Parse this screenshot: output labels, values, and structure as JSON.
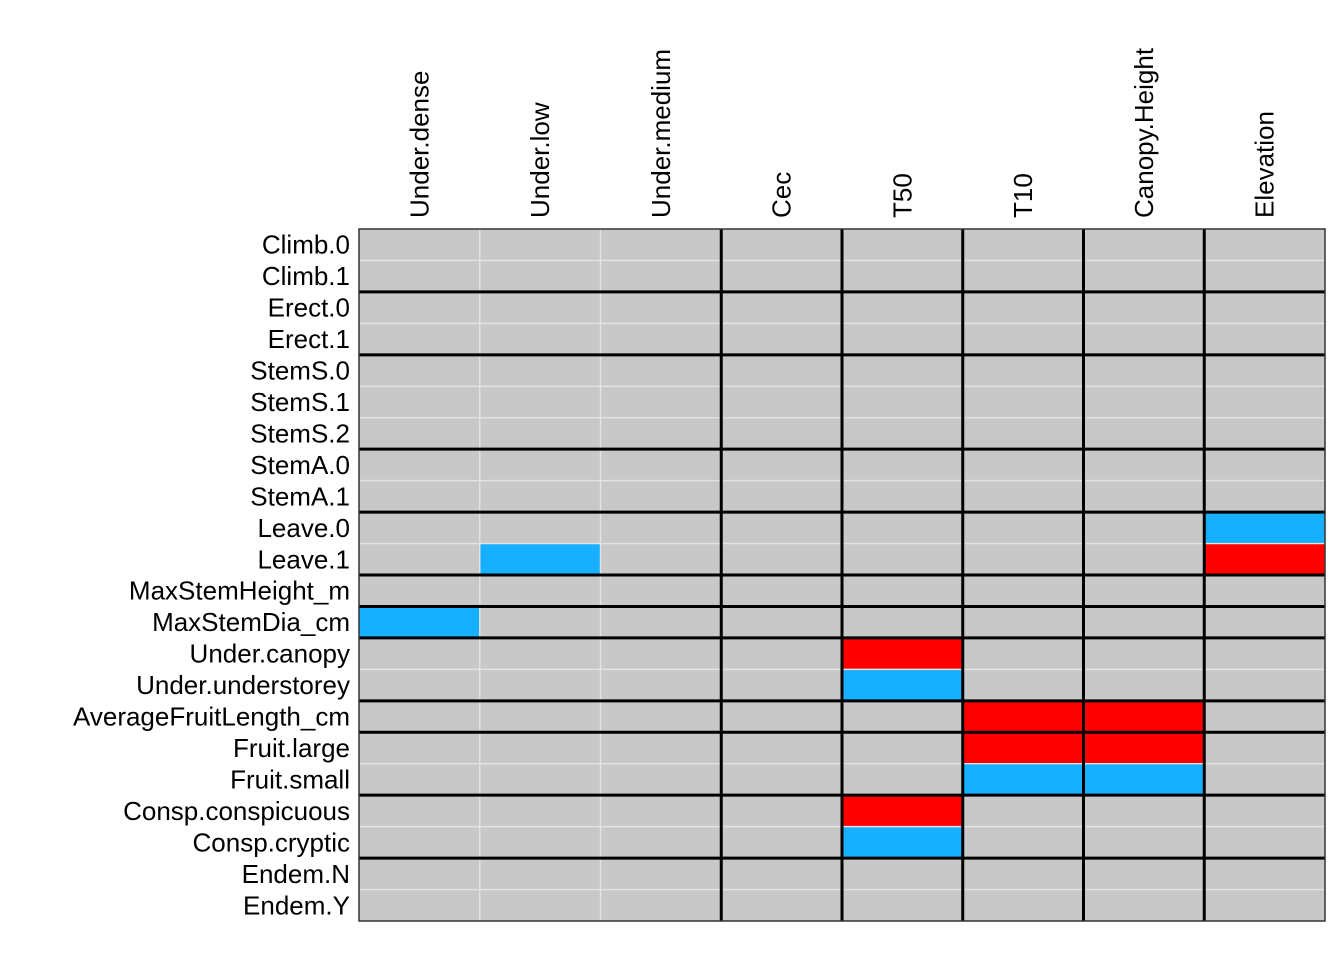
{
  "chart_data": {
    "type": "heatmap",
    "title": "",
    "xlabel": "",
    "ylabel": "",
    "columns": [
      "Under.dense",
      "Under.low",
      "Under.medium",
      "Cec",
      "T50",
      "T10",
      "Canopy.Height",
      "Elevation"
    ],
    "rows": [
      "Climb.0",
      "Climb.1",
      "Erect.0",
      "Erect.1",
      "StemS.0",
      "StemS.1",
      "StemS.2",
      "StemA.0",
      "StemA.1",
      "Leave.0",
      "Leave.1",
      "MaxStemHeight_m",
      "MaxStemDia_cm",
      "Under.canopy",
      "Under.understorey",
      "AverageFruitLength_cm",
      "Fruit.large",
      "Fruit.small",
      "Consp.conspicuous",
      "Consp.cryptic",
      "Endem.N",
      "Endem.Y"
    ],
    "column_groups": [
      [
        "Under.dense",
        "Under.low",
        "Under.medium"
      ],
      [
        "Cec"
      ],
      [
        "T50"
      ],
      [
        "T10"
      ],
      [
        "Canopy.Height"
      ],
      [
        "Elevation"
      ]
    ],
    "row_groups": [
      [
        "Climb.0",
        "Climb.1"
      ],
      [
        "Erect.0",
        "Erect.1"
      ],
      [
        "StemS.0",
        "StemS.1",
        "StemS.2"
      ],
      [
        "StemA.0",
        "StemA.1"
      ],
      [
        "Leave.0",
        "Leave.1"
      ],
      [
        "MaxStemHeight_m"
      ],
      [
        "MaxStemDia_cm"
      ],
      [
        "Under.canopy",
        "Under.understorey"
      ],
      [
        "AverageFruitLength_cm"
      ],
      [
        "Fruit.large",
        "Fruit.small"
      ],
      [
        "Consp.conspicuous",
        "Consp.cryptic"
      ],
      [
        "Endem.N",
        "Endem.Y"
      ]
    ],
    "colors": {
      "positive": "#ff0000",
      "negative": "#16b0ff",
      "neutral": "#c8c8c8",
      "minor_grid": "#e3e3e3",
      "group_border": "#000000"
    },
    "cells": [
      {
        "row": "Leave.0",
        "column": "Elevation",
        "value": -1
      },
      {
        "row": "Leave.1",
        "column": "Under.low",
        "value": -1
      },
      {
        "row": "Leave.1",
        "column": "Elevation",
        "value": 1
      },
      {
        "row": "MaxStemDia_cm",
        "column": "Under.dense",
        "value": -1
      },
      {
        "row": "Under.canopy",
        "column": "T50",
        "value": 1
      },
      {
        "row": "Under.understorey",
        "column": "T50",
        "value": -1
      },
      {
        "row": "AverageFruitLength_cm",
        "column": "T10",
        "value": 1
      },
      {
        "row": "AverageFruitLength_cm",
        "column": "Canopy.Height",
        "value": 1
      },
      {
        "row": "Fruit.large",
        "column": "T10",
        "value": 1
      },
      {
        "row": "Fruit.large",
        "column": "Canopy.Height",
        "value": 1
      },
      {
        "row": "Fruit.small",
        "column": "T10",
        "value": -1
      },
      {
        "row": "Fruit.small",
        "column": "Canopy.Height",
        "value": -1
      },
      {
        "row": "Consp.conspicuous",
        "column": "T50",
        "value": 1
      },
      {
        "row": "Consp.cryptic",
        "column": "T50",
        "value": -1
      }
    ]
  }
}
